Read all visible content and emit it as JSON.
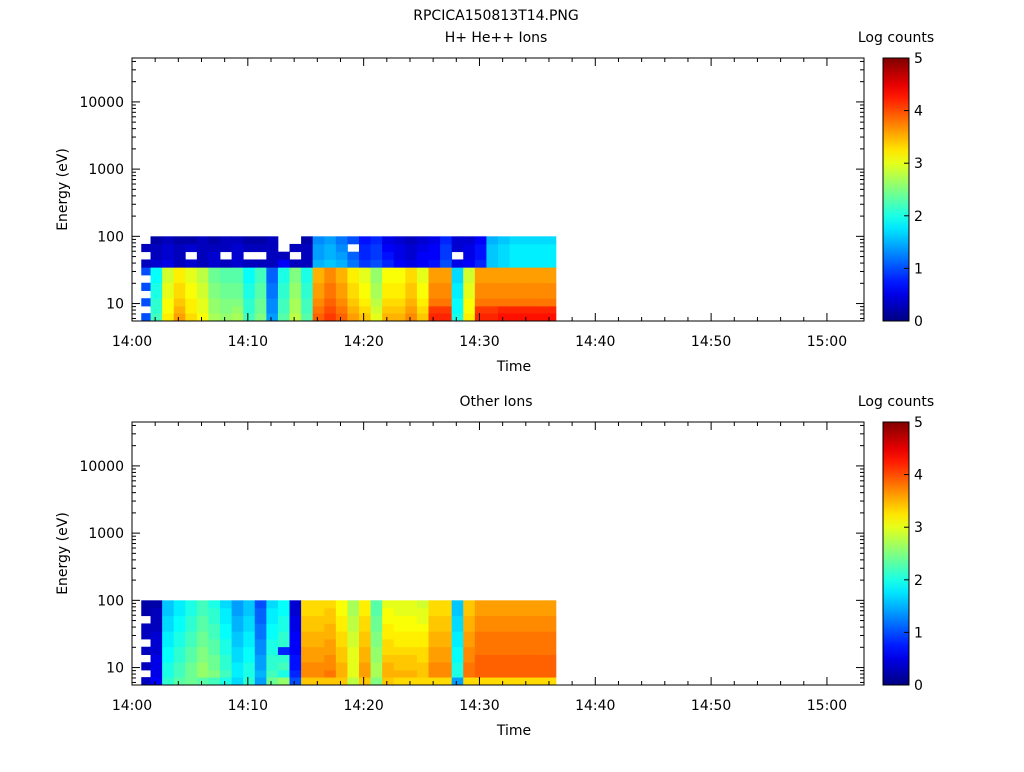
{
  "figure_title": "RPCICA150813T14.PNG",
  "panels": [
    {
      "title": "H+ He++ Ions",
      "xlabel": "Time",
      "ylabel": "Energy (eV)",
      "colorbar_label": "Log counts"
    },
    {
      "title": "Other Ions",
      "xlabel": "Time",
      "ylabel": "Energy (eV)",
      "colorbar_label": "Log counts"
    }
  ],
  "x_ticks": [
    "14:00",
    "14:10",
    "14:20",
    "14:30",
    "14:40",
    "14:50",
    "15:00"
  ],
  "y_ticks": [
    "10",
    "100",
    "1000",
    "10000"
  ],
  "colorbar_ticks": [
    "0",
    "1",
    "2",
    "3",
    "4",
    "5"
  ],
  "chart_data": [
    {
      "type": "heatmap",
      "title": "H+ He++ Ions",
      "xlabel": "Time",
      "ylabel": "Energy (eV)",
      "x_unit": "minutes after 14:00",
      "xlim": [
        0,
        63.2
      ],
      "ylim": [
        5.5,
        45000
      ],
      "y_scale": "log",
      "colorbar": {
        "label": "Log counts",
        "range": [
          0,
          5
        ],
        "colormap": "jet"
      },
      "time_bins": [
        0.8,
        1.6,
        2.6,
        3.6,
        4.6,
        5.6,
        6.6,
        7.6,
        8.6,
        9.6,
        10.6,
        11.6,
        12.6,
        13.6,
        14.6,
        15.6,
        16.6,
        17.6,
        18.6,
        19.6,
        20.6,
        21.6,
        22.6,
        23.6,
        24.6,
        25.6,
        26.6,
        27.6,
        28.6,
        29.6,
        30.6,
        31.6,
        32.6,
        33.6,
        34.6,
        35.6,
        36.6
      ],
      "energy_bins": [
        5.6,
        7.2,
        9.2,
        12.0,
        15.6,
        20.4,
        26.6,
        34.7,
        45.3,
        59.1,
        77.1,
        100
      ],
      "values": [
        [
          1,
          2.2,
          3.2,
          3.6,
          3.3,
          3.1,
          2.7,
          2.6,
          2.7,
          2.2,
          2.5,
          1.4,
          2.3,
          2.8,
          2.3,
          3.9,
          4.1,
          3.9,
          3.6,
          3.4,
          3.0,
          3.5,
          3.5,
          3.7,
          3.4,
          4.2,
          4.2,
          2.0,
          3.2,
          4.2,
          4.2,
          4.3,
          4.3,
          4.3,
          4.3,
          4.3
        ],
        [
          null,
          2.1,
          3.1,
          3.5,
          3.2,
          3.0,
          2.6,
          2.5,
          2.6,
          2.1,
          2.4,
          1.3,
          2.2,
          2.7,
          2.2,
          3.8,
          4.0,
          3.8,
          3.5,
          3.3,
          2.9,
          3.4,
          3.4,
          3.6,
          3.3,
          4.1,
          4.1,
          1.9,
          3.1,
          4.1,
          4.1,
          4.2,
          4.2,
          4.2,
          4.2,
          4.2
        ],
        [
          1,
          2.1,
          3.1,
          3.4,
          3.2,
          3.0,
          2.6,
          2.5,
          2.5,
          2.1,
          2.4,
          1.3,
          2.2,
          2.7,
          2.2,
          3.7,
          3.9,
          3.7,
          3.4,
          3.2,
          2.8,
          3.3,
          3.3,
          3.5,
          3.2,
          3.8,
          3.8,
          1.9,
          3.1,
          3.8,
          3.8,
          3.8,
          3.8,
          3.8,
          3.8,
          3.8
        ],
        [
          null,
          2.0,
          3.0,
          3.3,
          3.1,
          2.9,
          2.5,
          2.4,
          2.4,
          2.0,
          2.3,
          1.2,
          2.1,
          2.6,
          2.1,
          3.6,
          3.8,
          3.6,
          3.3,
          3.1,
          2.7,
          3.2,
          3.2,
          3.4,
          3.1,
          3.7,
          3.7,
          1.8,
          3.0,
          3.7,
          3.7,
          3.7,
          3.7,
          3.7,
          3.7,
          3.7
        ],
        [
          1,
          2.0,
          3.0,
          3.3,
          3.1,
          2.9,
          2.5,
          2.4,
          2.4,
          2.0,
          2.3,
          1.2,
          2.1,
          2.6,
          2.1,
          3.6,
          3.8,
          3.6,
          3.3,
          3.1,
          2.7,
          3.2,
          3.2,
          3.4,
          3.1,
          3.7,
          3.7,
          1.8,
          3.0,
          3.7,
          3.7,
          3.7,
          3.7,
          3.7,
          3.7,
          3.7
        ],
        [
          null,
          1.9,
          2.9,
          3.2,
          3.0,
          2.8,
          2.4,
          2.3,
          2.3,
          1.9,
          2.2,
          1.1,
          2.0,
          2.5,
          2.0,
          3.5,
          3.7,
          3.5,
          3.2,
          3.0,
          2.6,
          3.1,
          3.1,
          3.3,
          3.0,
          3.6,
          3.6,
          1.7,
          2.9,
          3.6,
          3.6,
          3.6,
          3.6,
          3.6,
          3.6,
          3.6
        ],
        [
          1,
          1.9,
          2.9,
          3.2,
          3.0,
          2.8,
          2.4,
          2.3,
          2.3,
          1.9,
          2.2,
          1.1,
          2.0,
          2.5,
          2.0,
          3.5,
          3.7,
          3.5,
          3.2,
          3.0,
          2.6,
          3.1,
          3.1,
          3.3,
          3.0,
          3.6,
          3.6,
          1.7,
          2.9,
          3.6,
          3.6,
          3.6,
          3.6,
          3.6,
          3.6,
          3.6
        ],
        [
          0.3,
          0.4,
          0.5,
          0.3,
          0.4,
          0.3,
          0.4,
          0.3,
          0.4,
          0.3,
          0.3,
          0.3,
          0.6,
          0.3,
          0.3,
          1.5,
          1.6,
          1.5,
          1.2,
          0.9,
          1.0,
          0.8,
          0.6,
          0.5,
          0.6,
          0.7,
          1.0,
          0.5,
          0.6,
          0.8,
          1.6,
          1.7,
          1.8,
          1.8,
          1.8,
          1.8
        ],
        [
          null,
          0.3,
          0.4,
          0.3,
          null,
          0.3,
          0.4,
          null,
          0.4,
          null,
          null,
          0.3,
          0.3,
          null,
          0.3,
          1.4,
          1.5,
          1.4,
          1.1,
          0.8,
          0.9,
          0.7,
          0.5,
          0.4,
          0.6,
          0.6,
          0.9,
          null,
          0.5,
          0.7,
          1.6,
          1.7,
          1.8,
          1.8,
          1.8,
          1.8
        ],
        [
          0.3,
          0.3,
          0.4,
          0.3,
          0.4,
          0.3,
          0.3,
          0.3,
          0.4,
          0.3,
          0.3,
          0.3,
          null,
          0.3,
          0.3,
          1.4,
          1.5,
          1.3,
          null,
          0.8,
          0.9,
          0.6,
          0.5,
          0.4,
          0.5,
          0.6,
          0.9,
          0.4,
          0.5,
          0.7,
          1.6,
          1.7,
          1.8,
          1.8,
          1.8,
          1.8
        ],
        [
          null,
          0.2,
          0.3,
          0.2,
          0.2,
          0.3,
          0.2,
          0.3,
          0.3,
          0.2,
          0.2,
          0.3,
          null,
          null,
          0.2,
          1.3,
          1.4,
          1.2,
          1.0,
          0.7,
          0.8,
          0.5,
          0.4,
          0.3,
          0.4,
          0.5,
          0.8,
          0.4,
          0.4,
          0.6,
          1.5,
          1.6,
          1.7,
          1.7,
          1.7,
          1.7
        ]
      ]
    },
    {
      "type": "heatmap",
      "title": "Other Ions",
      "xlabel": "Time",
      "ylabel": "Energy (eV)",
      "x_unit": "minutes after 14:00",
      "xlim": [
        0,
        63.2
      ],
      "ylim": [
        5.5,
        45000
      ],
      "y_scale": "log",
      "colorbar": {
        "label": "Log counts",
        "range": [
          0,
          5
        ],
        "colormap": "jet"
      },
      "time_bins": [
        0.8,
        1.6,
        2.6,
        3.6,
        4.6,
        5.6,
        6.6,
        7.6,
        8.6,
        9.6,
        10.6,
        11.6,
        12.6,
        13.6,
        14.6,
        15.6,
        16.6,
        17.6,
        18.6,
        19.6,
        20.6,
        21.6,
        22.6,
        23.6,
        24.6,
        25.6,
        26.6,
        27.6,
        28.6,
        29.6,
        30.6,
        31.6,
        32.6,
        33.6,
        34.6,
        35.6,
        36.6
      ],
      "energy_bins": [
        5.6,
        7.2,
        9.2,
        12.0,
        15.6,
        20.4,
        26.6,
        34.7,
        45.3,
        59.1,
        77.1,
        100
      ],
      "values": [
        [
          0.3,
          0.6,
          2.1,
          2.3,
          2.4,
          2.3,
          2.2,
          2.0,
          1.7,
          2.1,
          1.4,
          2.4,
          2.6,
          1.0,
          3.4,
          3.4,
          3.4,
          3.4,
          2.8,
          3.4,
          2.5,
          3.4,
          3.3,
          3.3,
          3.3,
          3.3,
          3.3,
          1.4,
          3.3,
          3.3,
          3.3,
          3.3,
          3.3,
          3.3,
          3.3,
          3.3
        ],
        [
          null,
          0.5,
          2.0,
          2.2,
          2.4,
          2.6,
          2.5,
          2.2,
          1.8,
          2.0,
          1.5,
          2.2,
          2.0,
          0.8,
          3.7,
          3.7,
          3.8,
          3.5,
          3.0,
          3.6,
          2.7,
          3.5,
          3.5,
          3.5,
          3.4,
          3.7,
          3.7,
          2.0,
          3.8,
          3.9,
          3.9,
          3.9,
          3.9,
          3.9,
          3.9,
          3.9
        ],
        [
          0.3,
          0.5,
          2.0,
          2.2,
          2.4,
          2.6,
          2.4,
          2.1,
          1.8,
          2.0,
          1.4,
          2.1,
          2.2,
          0.7,
          3.7,
          3.7,
          3.7,
          3.5,
          3.0,
          3.6,
          2.7,
          3.5,
          3.4,
          3.4,
          3.4,
          3.7,
          3.7,
          2.0,
          3.8,
          3.9,
          3.9,
          3.9,
          3.9,
          3.9,
          3.9,
          3.9
        ],
        [
          null,
          0.5,
          1.9,
          2.1,
          2.3,
          2.5,
          2.4,
          2.1,
          1.7,
          1.9,
          1.4,
          2.1,
          2.1,
          0.7,
          3.6,
          3.6,
          3.7,
          3.4,
          3.0,
          3.5,
          2.6,
          3.4,
          3.4,
          3.4,
          3.3,
          3.6,
          3.6,
          1.9,
          3.7,
          3.9,
          3.9,
          3.9,
          3.9,
          3.9,
          3.9,
          3.9
        ],
        [
          0.3,
          0.4,
          1.9,
          2.1,
          2.3,
          2.5,
          2.3,
          2.0,
          1.7,
          1.9,
          1.3,
          2.0,
          0.8,
          0.6,
          3.6,
          3.6,
          3.6,
          3.4,
          3.0,
          3.5,
          2.6,
          3.3,
          3.3,
          3.3,
          3.3,
          3.6,
          3.6,
          1.9,
          3.7,
          3.8,
          3.8,
          3.8,
          3.8,
          3.8,
          3.8,
          3.8
        ],
        [
          null,
          0.4,
          1.8,
          2.0,
          2.2,
          2.4,
          2.3,
          2.0,
          1.6,
          1.8,
          1.3,
          2.0,
          2.1,
          0.6,
          3.5,
          3.5,
          3.6,
          3.3,
          2.9,
          3.4,
          2.5,
          3.3,
          3.2,
          3.2,
          3.2,
          3.5,
          3.5,
          1.8,
          3.6,
          3.8,
          3.8,
          3.8,
          3.8,
          3.8,
          3.8,
          3.8
        ],
        [
          0.3,
          0.4,
          1.8,
          2.0,
          2.2,
          2.4,
          2.2,
          1.9,
          1.6,
          1.8,
          1.2,
          1.9,
          2.1,
          0.6,
          3.5,
          3.5,
          3.5,
          3.3,
          2.9,
          3.4,
          2.5,
          3.2,
          3.2,
          3.2,
          3.2,
          3.5,
          3.5,
          1.8,
          3.6,
          3.8,
          3.8,
          3.8,
          3.8,
          3.8,
          3.8,
          3.8
        ],
        [
          0.3,
          0.3,
          1.7,
          1.9,
          2.1,
          2.3,
          2.2,
          1.9,
          1.5,
          1.7,
          1.2,
          1.9,
          2.0,
          0.5,
          3.4,
          3.4,
          3.5,
          3.2,
          2.8,
          3.3,
          2.4,
          3.2,
          3.1,
          3.1,
          3.1,
          3.4,
          3.4,
          1.7,
          3.5,
          3.7,
          3.7,
          3.7,
          3.7,
          3.7,
          3.7,
          3.7
        ],
        [
          null,
          0.3,
          1.7,
          1.9,
          2.1,
          2.3,
          2.1,
          1.8,
          1.5,
          1.7,
          1.1,
          1.8,
          2.0,
          0.5,
          3.4,
          3.4,
          3.4,
          3.2,
          2.8,
          3.3,
          2.4,
          3.1,
          3.1,
          3.1,
          3.0,
          3.4,
          3.4,
          1.7,
          3.5,
          3.7,
          3.7,
          3.7,
          3.7,
          3.7,
          3.7,
          3.7
        ],
        [
          0.2,
          0.3,
          1.6,
          1.8,
          2.0,
          2.2,
          2.1,
          1.8,
          1.4,
          1.6,
          1.1,
          1.8,
          1.9,
          0.4,
          3.3,
          3.3,
          3.4,
          3.1,
          2.7,
          3.2,
          2.3,
          3.1,
          3.0,
          3.0,
          3.0,
          3.3,
          3.3,
          1.6,
          3.4,
          3.6,
          3.6,
          3.6,
          3.6,
          3.6,
          3.6,
          3.6
        ],
        [
          0.2,
          0.2,
          1.6,
          1.8,
          2.0,
          2.2,
          2.0,
          1.7,
          1.4,
          1.6,
          1.0,
          1.7,
          1.9,
          0.4,
          3.3,
          3.3,
          3.3,
          3.1,
          2.7,
          3.2,
          2.3,
          3.0,
          3.0,
          3.0,
          2.9,
          3.3,
          3.3,
          1.6,
          3.4,
          3.6,
          3.6,
          3.6,
          3.6,
          3.6,
          3.6,
          3.6
        ]
      ]
    }
  ]
}
